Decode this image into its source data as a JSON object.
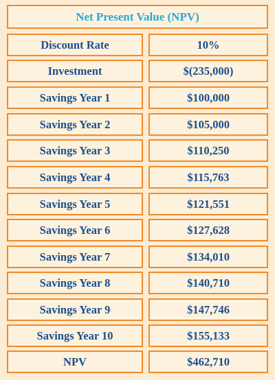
{
  "table": {
    "title": "Net Present Value (NPV)",
    "rows": [
      {
        "label": "Discount Rate",
        "value": "10%"
      },
      {
        "label": "Investment",
        "value": "$(235,000)"
      },
      {
        "label": "Savings Year 1",
        "value": "$100,000"
      },
      {
        "label": "Savings Year 2",
        "value": "$105,000"
      },
      {
        "label": "Savings Year 3",
        "value": "$110,250"
      },
      {
        "label": "Savings Year 4",
        "value": "$115,763"
      },
      {
        "label": "Savings Year 5",
        "value": "$121,551"
      },
      {
        "label": "Savings Year 6",
        "value": "$127,628"
      },
      {
        "label": "Savings Year 7",
        "value": "$134,010"
      },
      {
        "label": "Savings Year 8",
        "value": "$140,710"
      },
      {
        "label": "Savings Year 9",
        "value": "$147,746"
      },
      {
        "label": "Savings Year 10",
        "value": "$155,133"
      },
      {
        "label": "NPV",
        "value": "$462,710"
      }
    ]
  },
  "colors": {
    "background": "#fcecd3",
    "border": "#f08a2c",
    "title_text": "#29a8d8",
    "body_text": "#1b4f8e"
  }
}
